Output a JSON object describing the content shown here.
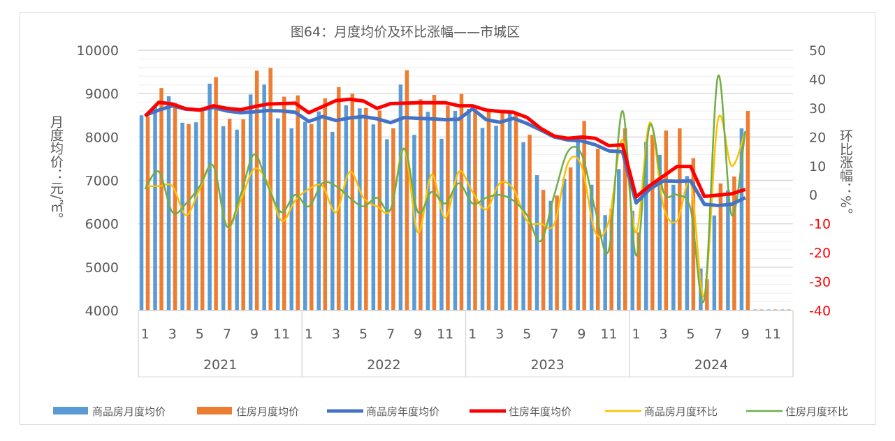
{
  "chart_data": {
    "type": "bar+line",
    "title": "图64：月度均价及环比涨幅——市城区",
    "ylabel": "月度均价：元/㎡。",
    "y2label": "环比涨幅：%。",
    "ylim": [
      4000,
      10000
    ],
    "yticks": [
      4000,
      5000,
      6000,
      7000,
      8000,
      9000,
      10000
    ],
    "y2lim": [
      -40,
      50
    ],
    "y2ticks": [
      -40,
      -30,
      -20,
      -10,
      0,
      10,
      20,
      30,
      40,
      50
    ],
    "years": [
      "2021",
      "2022",
      "2023",
      "2024"
    ],
    "month_ticks": [
      "1",
      "3",
      "5",
      "7",
      "9",
      "11"
    ],
    "grid": true,
    "legend_position": "bottom",
    "series": [
      {
        "name": "商品房月度均价",
        "kind": "bar",
        "axis": "left",
        "color": "#5b9bd5",
        "values": [
          8500,
          8700,
          8940,
          8330,
          8340,
          9230,
          8250,
          8170,
          8980,
          9210,
          8430,
          8200,
          8350,
          8590,
          8120,
          8730,
          8660,
          8290,
          7950,
          9210,
          8050,
          8580,
          7960,
          8600,
          8650,
          8210,
          8260,
          8560,
          7880,
          7120,
          6530,
          7040,
          8000,
          6900,
          6200,
          7260,
          6300,
          7890,
          7590,
          6900,
          7100,
          4970,
          6190,
          6770,
          8200,
          null,
          null,
          null
        ]
      },
      {
        "name": "住房月度均价",
        "kind": "bar",
        "axis": "left",
        "color": "#ed7d31",
        "values": [
          8480,
          9130,
          8780,
          8300,
          8680,
          9380,
          8420,
          8410,
          9530,
          9590,
          8930,
          8960,
          8300,
          8890,
          9150,
          9000,
          8670,
          8610,
          8200,
          9540,
          8870,
          8970,
          8720,
          8990,
          8650,
          8600,
          8580,
          8550,
          8050,
          6780,
          6650,
          7300,
          8370,
          7730,
          6350,
          8200,
          5800,
          8050,
          8150,
          8200,
          7510,
          4720,
          6930,
          7090,
          8600,
          null,
          null,
          null
        ]
      },
      {
        "name": "商品房年度均价",
        "kind": "line",
        "axis": "left",
        "color": "#4472c4",
        "values": [
          8500,
          8620,
          8720,
          8640,
          8620,
          8680,
          8600,
          8560,
          8580,
          8610,
          8600,
          8570,
          8360,
          8470,
          8380,
          8440,
          8470,
          8420,
          8330,
          8450,
          8430,
          8420,
          8400,
          8410,
          8650,
          8400,
          8340,
          8430,
          8310,
          8160,
          8000,
          7930,
          7910,
          7820,
          7680,
          7660,
          6480,
          6800,
          6990,
          6980,
          6990,
          6450,
          6420,
          6450,
          6600,
          null,
          null,
          null
        ]
      },
      {
        "name": "住房年度均价",
        "kind": "line",
        "axis": "left",
        "color": "#ff0000",
        "values": [
          8480,
          8800,
          8760,
          8650,
          8620,
          8720,
          8660,
          8630,
          8700,
          8760,
          8770,
          8780,
          8560,
          8700,
          8840,
          8870,
          8830,
          8660,
          8770,
          8780,
          8790,
          8790,
          8790,
          8720,
          8720,
          8620,
          8590,
          8570,
          8450,
          8200,
          8020,
          7970,
          8000,
          7970,
          7800,
          7820,
          6620,
          6880,
          7100,
          7320,
          7320,
          6630,
          6660,
          6690,
          6790,
          null,
          null,
          null
        ]
      },
      {
        "name": "商品房月度环比",
        "kind": "line",
        "axis": "right",
        "color": "#ffc000",
        "values": [
          3,
          3,
          3,
          -7,
          2,
          10,
          -11,
          -2,
          9,
          4,
          -9,
          -2,
          2,
          3,
          -6,
          8,
          -1,
          -4,
          -5,
          16,
          -13,
          7,
          -8,
          8,
          1,
          -5,
          4,
          2,
          -9,
          -10,
          -10,
          11,
          10,
          -13,
          -9,
          19,
          -13,
          25,
          -4,
          -9,
          4,
          -35,
          26,
          10,
          22,
          null,
          null,
          null
        ]
      },
      {
        "name": "住房月度环比",
        "kind": "line",
        "axis": "right",
        "color": "#70ad47",
        "values": [
          2,
          8,
          -6,
          -3,
          3,
          10,
          -11,
          0,
          14,
          3,
          -6,
          0,
          -4,
          4,
          3,
          -1,
          -4,
          -1,
          -5,
          16,
          -6,
          1,
          -3,
          4,
          -3,
          -1,
          0,
          -2,
          -7,
          -16,
          0,
          15,
          14,
          -5,
          -19,
          29,
          -21,
          24,
          1,
          0,
          -5,
          -36,
          41,
          -7,
          22,
          null,
          null,
          null
        ]
      }
    ]
  }
}
